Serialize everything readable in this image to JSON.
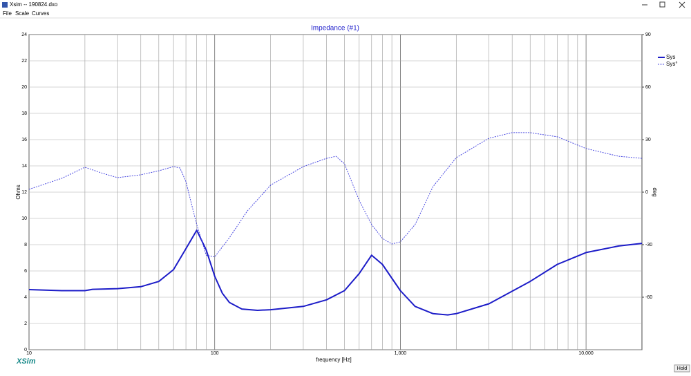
{
  "window": {
    "title": "Xsim -- 190824.dxo",
    "menu": [
      "File",
      "Scale",
      "Curves"
    ],
    "logo": "XSim",
    "button": "Hold"
  },
  "chart_data": {
    "type": "line",
    "title": "Impedance (#1)",
    "xlabel": "frequency [Hz]",
    "ylabel": "Ohms",
    "y2label": "deg",
    "xscale": "log",
    "xlim": [
      10,
      20000
    ],
    "xticks": [
      10,
      100,
      {
        "value": 1000,
        "label": "1,000"
      },
      {
        "value": 10000,
        "label": "10,000"
      }
    ],
    "xminor": [
      20,
      30,
      40,
      50,
      60,
      70,
      80,
      90,
      200,
      300,
      400,
      500,
      600,
      700,
      800,
      900,
      2000,
      3000,
      4000,
      5000,
      6000,
      7000,
      8000,
      9000
    ],
    "ylim": [
      0,
      24
    ],
    "yticks": [
      0,
      2,
      4,
      6,
      8,
      10,
      12,
      14,
      16,
      18,
      20,
      22,
      24
    ],
    "y2lim": [
      -90,
      90
    ],
    "y2ticks": [
      -60,
      -30,
      0,
      30,
      60,
      90
    ],
    "grid": true,
    "legend": "top-right",
    "series": [
      {
        "name": "Sys",
        "color": "#1c1cc8",
        "style": "solid",
        "x": [
          10,
          15,
          20,
          22,
          30,
          40,
          50,
          60,
          70,
          80,
          90,
          100,
          110,
          120,
          140,
          170,
          200,
          300,
          400,
          500,
          600,
          700,
          800,
          1000,
          1200,
          1500,
          1800,
          2000,
          3000,
          5000,
          7000,
          10000,
          15000,
          20000
        ],
        "values": [
          4.58,
          4.5,
          4.5,
          4.6,
          4.65,
          4.8,
          5.2,
          6.1,
          7.7,
          9.1,
          7.6,
          5.6,
          4.3,
          3.6,
          3.1,
          3.0,
          3.05,
          3.3,
          3.8,
          4.5,
          5.8,
          7.2,
          6.5,
          4.5,
          3.3,
          2.75,
          2.65,
          2.75,
          3.5,
          5.2,
          6.5,
          7.4,
          7.9,
          8.1
        ]
      },
      {
        "name": "Sys°",
        "color": "#4848e0",
        "style": "dotted",
        "axis": "y2",
        "x": [
          10,
          15,
          20,
          25,
          30,
          40,
          50,
          60,
          65,
          70,
          75,
          80,
          90,
          100,
          120,
          150,
          200,
          300,
          400,
          450,
          500,
          600,
          700,
          800,
          900,
          1000,
          1200,
          1500,
          2000,
          3000,
          4000,
          5000,
          7000,
          10000,
          15000,
          20000
        ],
        "values": [
          1.6,
          7.9,
          14.2,
          10.7,
          8.3,
          9.9,
          12.2,
          14.6,
          13.8,
          6,
          -6.7,
          -18.5,
          -36,
          -37,
          -26,
          -10.7,
          4,
          14.6,
          19.3,
          20.5,
          16.2,
          -4.7,
          -18.5,
          -26.4,
          -29.6,
          -28.4,
          -18.5,
          3.2,
          19.7,
          30.8,
          34,
          34,
          31.6,
          24.9,
          20.5,
          19.3
        ]
      }
    ]
  }
}
